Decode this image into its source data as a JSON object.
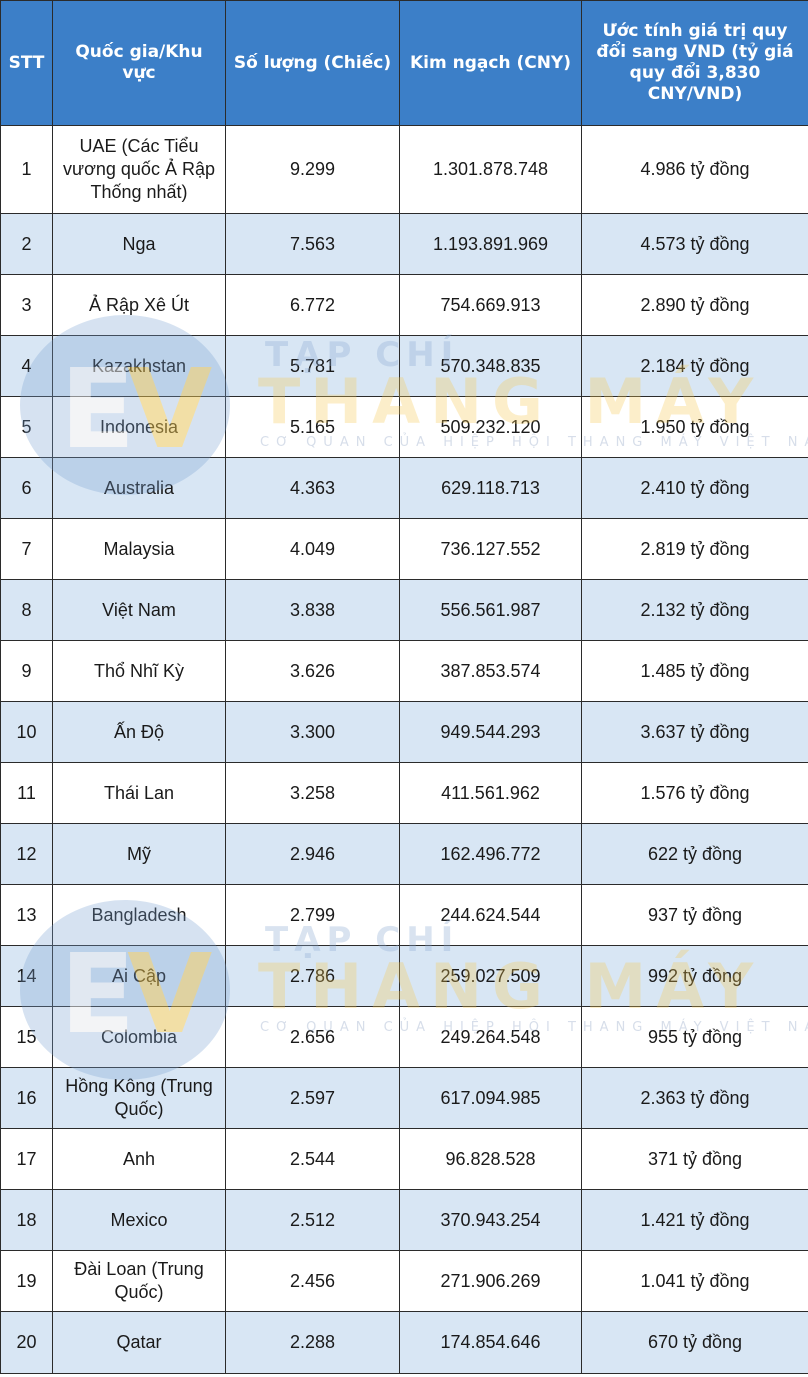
{
  "headers": [
    "STT",
    "Quốc gia/Khu vực",
    "Số lượng (Chiếc)",
    "Kim ngạch (CNY)",
    "Ước tính giá trị quy đổi sang VND (tỷ giá quy đổi 3,830 CNY/VND)"
  ],
  "rows": [
    {
      "stt": "1",
      "country": "UAE (Các Tiểu vương quốc Ả Rập Thống nhất)",
      "qty": "9.299",
      "cny": "1.301.878.748",
      "vnd": "4.986 tỷ đồng"
    },
    {
      "stt": "2",
      "country": "Nga",
      "qty": "7.563",
      "cny": "1.193.891.969",
      "vnd": "4.573 tỷ đồng"
    },
    {
      "stt": "3",
      "country": "Ả Rập Xê Út",
      "qty": "6.772",
      "cny": "754.669.913",
      "vnd": "2.890 tỷ đồng"
    },
    {
      "stt": "4",
      "country": "Kazakhstan",
      "qty": "5.781",
      "cny": "570.348.835",
      "vnd": "2.184 tỷ đồng"
    },
    {
      "stt": "5",
      "country": "Indonesia",
      "qty": "5.165",
      "cny": "509.232.120",
      "vnd": "1.950 tỷ đồng"
    },
    {
      "stt": "6",
      "country": "Australia",
      "qty": "4.363",
      "cny": "629.118.713",
      "vnd": "2.410 tỷ đồng"
    },
    {
      "stt": "7",
      "country": "Malaysia",
      "qty": "4.049",
      "cny": "736.127.552",
      "vnd": "2.819 tỷ đồng"
    },
    {
      "stt": "8",
      "country": "Việt Nam",
      "qty": "3.838",
      "cny": "556.561.987",
      "vnd": "2.132 tỷ đồng"
    },
    {
      "stt": "9",
      "country": "Thổ Nhĩ Kỳ",
      "qty": "3.626",
      "cny": "387.853.574",
      "vnd": "1.485 tỷ đồng"
    },
    {
      "stt": "10",
      "country": "Ấn Độ",
      "qty": "3.300",
      "cny": "949.544.293",
      "vnd": "3.637 tỷ đồng"
    },
    {
      "stt": "11",
      "country": "Thái Lan",
      "qty": "3.258",
      "cny": "411.561.962",
      "vnd": "1.576 tỷ đồng"
    },
    {
      "stt": "12",
      "country": "Mỹ",
      "qty": "2.946",
      "cny": "162.496.772",
      "vnd": "622 tỷ đồng"
    },
    {
      "stt": "13",
      "country": "Bangladesh",
      "qty": "2.799",
      "cny": "244.624.544",
      "vnd": "937 tỷ đồng"
    },
    {
      "stt": "14",
      "country": "Ai Cập",
      "qty": "2.786",
      "cny": "259.027.509",
      "vnd": "992 tỷ đồng"
    },
    {
      "stt": "15",
      "country": "Colombia",
      "qty": "2.656",
      "cny": "249.264.548",
      "vnd": "955 tỷ đồng"
    },
    {
      "stt": "16",
      "country": "Hồng Kông (Trung Quốc)",
      "qty": "2.597",
      "cny": "617.094.985",
      "vnd": "2.363 tỷ đồng"
    },
    {
      "stt": "17",
      "country": "Anh",
      "qty": "2.544",
      "cny": "96.828.528",
      "vnd": "371 tỷ đồng"
    },
    {
      "stt": "18",
      "country": "Mexico",
      "qty": "2.512",
      "cny": "370.943.254",
      "vnd": "1.421 tỷ đồng"
    },
    {
      "stt": "19",
      "country": "Đài Loan (Trung Quốc)",
      "qty": "2.456",
      "cny": "271.906.269",
      "vnd": "1.041 tỷ đồng"
    },
    {
      "stt": "20",
      "country": "Qatar",
      "qty": "2.288",
      "cny": "174.854.646",
      "vnd": "670 tỷ đồng"
    }
  ],
  "watermark": {
    "logo_letters": "EV",
    "line1": "TẠP CHÍ",
    "line2": "THANG MÁY",
    "line3": "CƠ QUAN CỦA HIỆP HỘI THANG MÁY VIỆT NAM"
  },
  "colors": {
    "header_bg": "#3c7fc8",
    "alt_row_bg": "#d8e6f4",
    "watermark_gold": "#f5c43c"
  }
}
